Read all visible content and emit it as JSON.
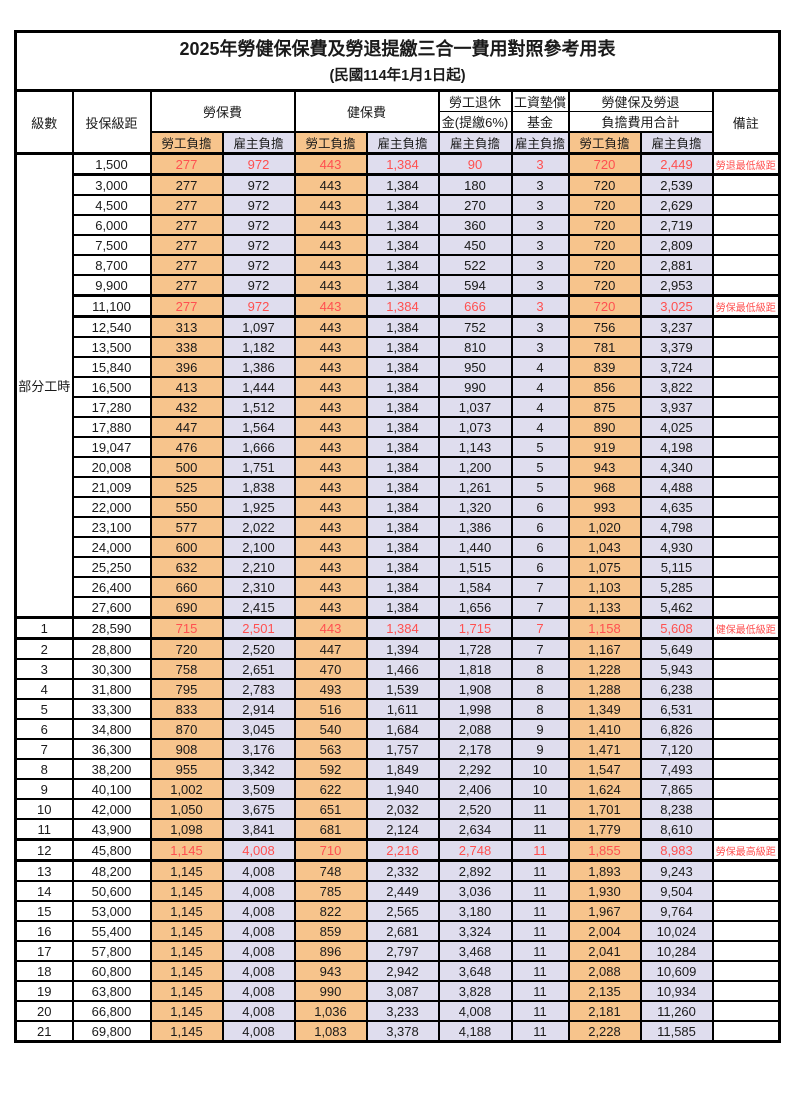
{
  "title": "2025年勞健保保費及勞退提繳三合一費用對照參考用表",
  "subtitle": "(民國114年1月1日起)",
  "header": {
    "level": "級數",
    "bracket": "投保級距",
    "labor_ins": "勞保費",
    "health_ins": "健保費",
    "pension_line1": "勞工退休",
    "pension_line2": "金(提繳6%)",
    "fund_line1": "工資墊償",
    "fund_line2": "基金",
    "total_line1": "勞健保及勞退",
    "total_line2": "負擔費用合計",
    "note": "備註",
    "employee": "勞工負擔",
    "employer": "雇主負擔"
  },
  "part_time_label": "部分工時",
  "colors": {
    "employee_bg": "#F7C48C",
    "employer_bg": "#DFDDEE",
    "highlight_text": "#FF5050"
  },
  "rows": [
    {
      "level": "",
      "bracket": "1,500",
      "labor_emp": "277",
      "labor_er": "972",
      "health_emp": "443",
      "health_er": "1,384",
      "pension_er": "90",
      "fund_er": "3",
      "total_emp": "720",
      "total_er": "2,449",
      "note": "勞退最低級距",
      "highlight": true
    },
    {
      "level": "",
      "bracket": "3,000",
      "labor_emp": "277",
      "labor_er": "972",
      "health_emp": "443",
      "health_er": "1,384",
      "pension_er": "180",
      "fund_er": "3",
      "total_emp": "720",
      "total_er": "2,539",
      "note": "",
      "highlight": false
    },
    {
      "level": "",
      "bracket": "4,500",
      "labor_emp": "277",
      "labor_er": "972",
      "health_emp": "443",
      "health_er": "1,384",
      "pension_er": "270",
      "fund_er": "3",
      "total_emp": "720",
      "total_er": "2,629",
      "note": "",
      "highlight": false
    },
    {
      "level": "",
      "bracket": "6,000",
      "labor_emp": "277",
      "labor_er": "972",
      "health_emp": "443",
      "health_er": "1,384",
      "pension_er": "360",
      "fund_er": "3",
      "total_emp": "720",
      "total_er": "2,719",
      "note": "",
      "highlight": false
    },
    {
      "level": "",
      "bracket": "7,500",
      "labor_emp": "277",
      "labor_er": "972",
      "health_emp": "443",
      "health_er": "1,384",
      "pension_er": "450",
      "fund_er": "3",
      "total_emp": "720",
      "total_er": "2,809",
      "note": "",
      "highlight": false
    },
    {
      "level": "",
      "bracket": "8,700",
      "labor_emp": "277",
      "labor_er": "972",
      "health_emp": "443",
      "health_er": "1,384",
      "pension_er": "522",
      "fund_er": "3",
      "total_emp": "720",
      "total_er": "2,881",
      "note": "",
      "highlight": false
    },
    {
      "level": "",
      "bracket": "9,900",
      "labor_emp": "277",
      "labor_er": "972",
      "health_emp": "443",
      "health_er": "1,384",
      "pension_er": "594",
      "fund_er": "3",
      "total_emp": "720",
      "total_er": "2,953",
      "note": "",
      "highlight": false
    },
    {
      "level": "",
      "bracket": "11,100",
      "labor_emp": "277",
      "labor_er": "972",
      "health_emp": "443",
      "health_er": "1,384",
      "pension_er": "666",
      "fund_er": "3",
      "total_emp": "720",
      "total_er": "3,025",
      "note": "勞保最低級距",
      "highlight": true
    },
    {
      "level": "",
      "bracket": "12,540",
      "labor_emp": "313",
      "labor_er": "1,097",
      "health_emp": "443",
      "health_er": "1,384",
      "pension_er": "752",
      "fund_er": "3",
      "total_emp": "756",
      "total_er": "3,237",
      "note": "",
      "highlight": false
    },
    {
      "level": "",
      "bracket": "13,500",
      "labor_emp": "338",
      "labor_er": "1,182",
      "health_emp": "443",
      "health_er": "1,384",
      "pension_er": "810",
      "fund_er": "3",
      "total_emp": "781",
      "total_er": "3,379",
      "note": "",
      "highlight": false
    },
    {
      "level": "",
      "bracket": "15,840",
      "labor_emp": "396",
      "labor_er": "1,386",
      "health_emp": "443",
      "health_er": "1,384",
      "pension_er": "950",
      "fund_er": "4",
      "total_emp": "839",
      "total_er": "3,724",
      "note": "",
      "highlight": false
    },
    {
      "level": "",
      "bracket": "16,500",
      "labor_emp": "413",
      "labor_er": "1,444",
      "health_emp": "443",
      "health_er": "1,384",
      "pension_er": "990",
      "fund_er": "4",
      "total_emp": "856",
      "total_er": "3,822",
      "note": "",
      "highlight": false
    },
    {
      "level": "",
      "bracket": "17,280",
      "labor_emp": "432",
      "labor_er": "1,512",
      "health_emp": "443",
      "health_er": "1,384",
      "pension_er": "1,037",
      "fund_er": "4",
      "total_emp": "875",
      "total_er": "3,937",
      "note": "",
      "highlight": false
    },
    {
      "level": "",
      "bracket": "17,880",
      "labor_emp": "447",
      "labor_er": "1,564",
      "health_emp": "443",
      "health_er": "1,384",
      "pension_er": "1,073",
      "fund_er": "4",
      "total_emp": "890",
      "total_er": "4,025",
      "note": "",
      "highlight": false
    },
    {
      "level": "",
      "bracket": "19,047",
      "labor_emp": "476",
      "labor_er": "1,666",
      "health_emp": "443",
      "health_er": "1,384",
      "pension_er": "1,143",
      "fund_er": "5",
      "total_emp": "919",
      "total_er": "4,198",
      "note": "",
      "highlight": false
    },
    {
      "level": "",
      "bracket": "20,008",
      "labor_emp": "500",
      "labor_er": "1,751",
      "health_emp": "443",
      "health_er": "1,384",
      "pension_er": "1,200",
      "fund_er": "5",
      "total_emp": "943",
      "total_er": "4,340",
      "note": "",
      "highlight": false
    },
    {
      "level": "",
      "bracket": "21,009",
      "labor_emp": "525",
      "labor_er": "1,838",
      "health_emp": "443",
      "health_er": "1,384",
      "pension_er": "1,261",
      "fund_er": "5",
      "total_emp": "968",
      "total_er": "4,488",
      "note": "",
      "highlight": false
    },
    {
      "level": "",
      "bracket": "22,000",
      "labor_emp": "550",
      "labor_er": "1,925",
      "health_emp": "443",
      "health_er": "1,384",
      "pension_er": "1,320",
      "fund_er": "6",
      "total_emp": "993",
      "total_er": "4,635",
      "note": "",
      "highlight": false
    },
    {
      "level": "",
      "bracket": "23,100",
      "labor_emp": "577",
      "labor_er": "2,022",
      "health_emp": "443",
      "health_er": "1,384",
      "pension_er": "1,386",
      "fund_er": "6",
      "total_emp": "1,020",
      "total_er": "4,798",
      "note": "",
      "highlight": false
    },
    {
      "level": "",
      "bracket": "24,000",
      "labor_emp": "600",
      "labor_er": "2,100",
      "health_emp": "443",
      "health_er": "1,384",
      "pension_er": "1,440",
      "fund_er": "6",
      "total_emp": "1,043",
      "total_er": "4,930",
      "note": "",
      "highlight": false
    },
    {
      "level": "",
      "bracket": "25,250",
      "labor_emp": "632",
      "labor_er": "2,210",
      "health_emp": "443",
      "health_er": "1,384",
      "pension_er": "1,515",
      "fund_er": "6",
      "total_emp": "1,075",
      "total_er": "5,115",
      "note": "",
      "highlight": false
    },
    {
      "level": "",
      "bracket": "26,400",
      "labor_emp": "660",
      "labor_er": "2,310",
      "health_emp": "443",
      "health_er": "1,384",
      "pension_er": "1,584",
      "fund_er": "7",
      "total_emp": "1,103",
      "total_er": "5,285",
      "note": "",
      "highlight": false
    },
    {
      "level": "",
      "bracket": "27,600",
      "labor_emp": "690",
      "labor_er": "2,415",
      "health_emp": "443",
      "health_er": "1,384",
      "pension_er": "1,656",
      "fund_er": "7",
      "total_emp": "1,133",
      "total_er": "5,462",
      "note": "",
      "highlight": false
    },
    {
      "level": "1",
      "bracket": "28,590",
      "labor_emp": "715",
      "labor_er": "2,501",
      "health_emp": "443",
      "health_er": "1,384",
      "pension_er": "1,715",
      "fund_er": "7",
      "total_emp": "1,158",
      "total_er": "5,608",
      "note": "健保最低級距",
      "highlight": true
    },
    {
      "level": "2",
      "bracket": "28,800",
      "labor_emp": "720",
      "labor_er": "2,520",
      "health_emp": "447",
      "health_er": "1,394",
      "pension_er": "1,728",
      "fund_er": "7",
      "total_emp": "1,167",
      "total_er": "5,649",
      "note": "",
      "highlight": false
    },
    {
      "level": "3",
      "bracket": "30,300",
      "labor_emp": "758",
      "labor_er": "2,651",
      "health_emp": "470",
      "health_er": "1,466",
      "pension_er": "1,818",
      "fund_er": "8",
      "total_emp": "1,228",
      "total_er": "5,943",
      "note": "",
      "highlight": false
    },
    {
      "level": "4",
      "bracket": "31,800",
      "labor_emp": "795",
      "labor_er": "2,783",
      "health_emp": "493",
      "health_er": "1,539",
      "pension_er": "1,908",
      "fund_er": "8",
      "total_emp": "1,288",
      "total_er": "6,238",
      "note": "",
      "highlight": false
    },
    {
      "level": "5",
      "bracket": "33,300",
      "labor_emp": "833",
      "labor_er": "2,914",
      "health_emp": "516",
      "health_er": "1,611",
      "pension_er": "1,998",
      "fund_er": "8",
      "total_emp": "1,349",
      "total_er": "6,531",
      "note": "",
      "highlight": false
    },
    {
      "level": "6",
      "bracket": "34,800",
      "labor_emp": "870",
      "labor_er": "3,045",
      "health_emp": "540",
      "health_er": "1,684",
      "pension_er": "2,088",
      "fund_er": "9",
      "total_emp": "1,410",
      "total_er": "6,826",
      "note": "",
      "highlight": false
    },
    {
      "level": "7",
      "bracket": "36,300",
      "labor_emp": "908",
      "labor_er": "3,176",
      "health_emp": "563",
      "health_er": "1,757",
      "pension_er": "2,178",
      "fund_er": "9",
      "total_emp": "1,471",
      "total_er": "7,120",
      "note": "",
      "highlight": false
    },
    {
      "level": "8",
      "bracket": "38,200",
      "labor_emp": "955",
      "labor_er": "3,342",
      "health_emp": "592",
      "health_er": "1,849",
      "pension_er": "2,292",
      "fund_er": "10",
      "total_emp": "1,547",
      "total_er": "7,493",
      "note": "",
      "highlight": false
    },
    {
      "level": "9",
      "bracket": "40,100",
      "labor_emp": "1,002",
      "labor_er": "3,509",
      "health_emp": "622",
      "health_er": "1,940",
      "pension_er": "2,406",
      "fund_er": "10",
      "total_emp": "1,624",
      "total_er": "7,865",
      "note": "",
      "highlight": false
    },
    {
      "level": "10",
      "bracket": "42,000",
      "labor_emp": "1,050",
      "labor_er": "3,675",
      "health_emp": "651",
      "health_er": "2,032",
      "pension_er": "2,520",
      "fund_er": "11",
      "total_emp": "1,701",
      "total_er": "8,238",
      "note": "",
      "highlight": false
    },
    {
      "level": "11",
      "bracket": "43,900",
      "labor_emp": "1,098",
      "labor_er": "3,841",
      "health_emp": "681",
      "health_er": "2,124",
      "pension_er": "2,634",
      "fund_er": "11",
      "total_emp": "1,779",
      "total_er": "8,610",
      "note": "",
      "highlight": false
    },
    {
      "level": "12",
      "bracket": "45,800",
      "labor_emp": "1,145",
      "labor_er": "4,008",
      "health_emp": "710",
      "health_er": "2,216",
      "pension_er": "2,748",
      "fund_er": "11",
      "total_emp": "1,855",
      "total_er": "8,983",
      "note": "勞保最高級距",
      "highlight": true
    },
    {
      "level": "13",
      "bracket": "48,200",
      "labor_emp": "1,145",
      "labor_er": "4,008",
      "health_emp": "748",
      "health_er": "2,332",
      "pension_er": "2,892",
      "fund_er": "11",
      "total_emp": "1,893",
      "total_er": "9,243",
      "note": "",
      "highlight": false
    },
    {
      "level": "14",
      "bracket": "50,600",
      "labor_emp": "1,145",
      "labor_er": "4,008",
      "health_emp": "785",
      "health_er": "2,449",
      "pension_er": "3,036",
      "fund_er": "11",
      "total_emp": "1,930",
      "total_er": "9,504",
      "note": "",
      "highlight": false
    },
    {
      "level": "15",
      "bracket": "53,000",
      "labor_emp": "1,145",
      "labor_er": "4,008",
      "health_emp": "822",
      "health_er": "2,565",
      "pension_er": "3,180",
      "fund_er": "11",
      "total_emp": "1,967",
      "total_er": "9,764",
      "note": "",
      "highlight": false
    },
    {
      "level": "16",
      "bracket": "55,400",
      "labor_emp": "1,145",
      "labor_er": "4,008",
      "health_emp": "859",
      "health_er": "2,681",
      "pension_er": "3,324",
      "fund_er": "11",
      "total_emp": "2,004",
      "total_er": "10,024",
      "note": "",
      "highlight": false
    },
    {
      "level": "17",
      "bracket": "57,800",
      "labor_emp": "1,145",
      "labor_er": "4,008",
      "health_emp": "896",
      "health_er": "2,797",
      "pension_er": "3,468",
      "fund_er": "11",
      "total_emp": "2,041",
      "total_er": "10,284",
      "note": "",
      "highlight": false
    },
    {
      "level": "18",
      "bracket": "60,800",
      "labor_emp": "1,145",
      "labor_er": "4,008",
      "health_emp": "943",
      "health_er": "2,942",
      "pension_er": "3,648",
      "fund_er": "11",
      "total_emp": "2,088",
      "total_er": "10,609",
      "note": "",
      "highlight": false
    },
    {
      "level": "19",
      "bracket": "63,800",
      "labor_emp": "1,145",
      "labor_er": "4,008",
      "health_emp": "990",
      "health_er": "3,087",
      "pension_er": "3,828",
      "fund_er": "11",
      "total_emp": "2,135",
      "total_er": "10,934",
      "note": "",
      "highlight": false
    },
    {
      "level": "20",
      "bracket": "66,800",
      "labor_emp": "1,145",
      "labor_er": "4,008",
      "health_emp": "1,036",
      "health_er": "3,233",
      "pension_er": "4,008",
      "fund_er": "11",
      "total_emp": "2,181",
      "total_er": "11,260",
      "note": "",
      "highlight": false
    },
    {
      "level": "21",
      "bracket": "69,800",
      "labor_emp": "1,145",
      "labor_er": "4,008",
      "health_emp": "1,083",
      "health_er": "3,378",
      "pension_er": "4,188",
      "fund_er": "11",
      "total_emp": "2,228",
      "total_er": "11,585",
      "note": "",
      "highlight": false
    }
  ]
}
